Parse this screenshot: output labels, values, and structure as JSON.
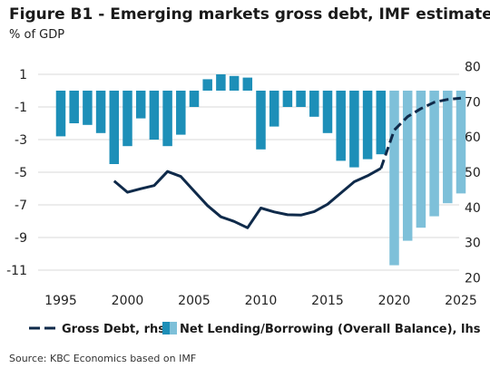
{
  "title": "Figure B1 - Emerging markets gross debt, IMF estimate",
  "subtitle": "% of GDP",
  "source": "Source: KBC Economics based on IMF",
  "colors": {
    "bar_actual": "#1d8fb8",
    "bar_forecast": "#7ec0d9",
    "line": "#0f2a4a",
    "grid": "#d9d9d9"
  },
  "chart_data": {
    "type": "bar+line",
    "x_ticks": [
      1995,
      2000,
      2005,
      2010,
      2015,
      2020,
      2025
    ],
    "left_axis": {
      "ticks": [
        1,
        -1,
        -3,
        -5,
        -7,
        -9,
        -11
      ],
      "range": [
        -12,
        2
      ]
    },
    "right_axis": {
      "ticks": [
        80,
        70,
        60,
        50,
        40,
        30,
        20
      ],
      "range": [
        17.5,
        82.5
      ]
    },
    "legend": {
      "line_label": "Gross Debt, rhs",
      "bar_label": "Net Lending/Borrowing (Overall Balance), lhs"
    },
    "bars": {
      "axis": "lhs",
      "years": [
        1995,
        1996,
        1997,
        1998,
        1999,
        2000,
        2001,
        2002,
        2003,
        2004,
        2005,
        2006,
        2007,
        2008,
        2009,
        2010,
        2011,
        2012,
        2013,
        2014,
        2015,
        2016,
        2017,
        2018,
        2019,
        2020,
        2021,
        2022,
        2023,
        2024,
        2025
      ],
      "values": [
        -2.8,
        -2.0,
        -2.1,
        -2.6,
        -4.5,
        -3.4,
        -1.7,
        -3.0,
        -3.4,
        -2.7,
        -1.0,
        0.7,
        1.0,
        0.9,
        0.8,
        -3.6,
        -2.2,
        -1.0,
        -1.0,
        -1.6,
        -2.6,
        -4.3,
        -4.7,
        -4.2,
        -3.9,
        -10.7,
        -9.2,
        -8.4,
        -7.7,
        -6.9,
        -6.3
      ],
      "forecast_from": 2020
    },
    "line": {
      "axis": "rhs",
      "years": [
        1999,
        2000,
        2001,
        2002,
        2003,
        2004,
        2005,
        2006,
        2007,
        2008,
        2009,
        2010,
        2011,
        2012,
        2013,
        2014,
        2015,
        2016,
        2017,
        2018,
        2019,
        2020,
        2021,
        2022,
        2023,
        2024,
        2025
      ],
      "values": [
        47.5,
        44.3,
        45.3,
        46.2,
        50.2,
        48.8,
        44.6,
        40.5,
        37.3,
        36.0,
        34.2,
        39.8,
        38.7,
        37.9,
        37.8,
        38.8,
        40.9,
        44.1,
        47.3,
        49.0,
        51.1,
        62.0,
        65.8,
        68.1,
        69.9,
        70.7,
        71.1
      ],
      "forecast_from": 2019
    }
  }
}
